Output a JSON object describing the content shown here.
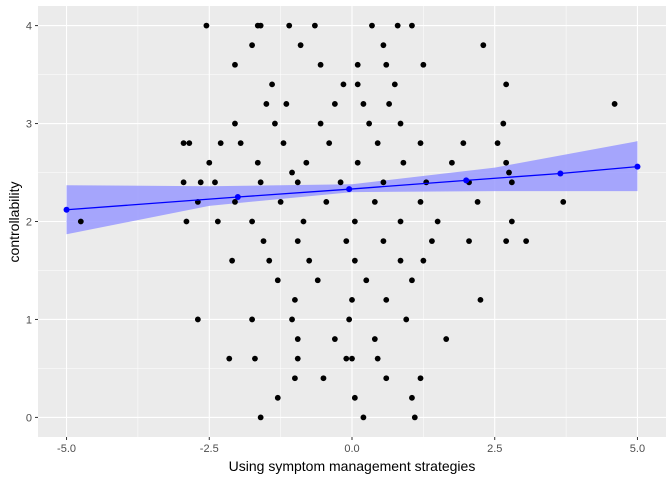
{
  "chart_data": {
    "type": "scatter",
    "xlabel": "Using symptom management strategies",
    "ylabel": "controllability",
    "xlim": [
      -5.5,
      5.5
    ],
    "ylim": [
      -0.2,
      4.2
    ],
    "x_ticks": [
      -5.0,
      -2.5,
      0.0,
      2.5,
      5.0
    ],
    "x_tick_labels": [
      "-5.0",
      "-2.5",
      "0.0",
      "2.5",
      "5.0"
    ],
    "y_ticks": [
      0,
      1,
      2,
      3,
      4
    ],
    "y_tick_labels": [
      "0",
      "1",
      "2",
      "3",
      "4"
    ],
    "grid": true,
    "colors": {
      "panel": "#ebebeb",
      "grid": "#ffffff",
      "points": "#000000",
      "fit": "#0000ff",
      "ribbon": "#9999ff"
    },
    "points": [
      [
        -2.55,
        4.0
      ],
      [
        -1.65,
        4.0
      ],
      [
        -1.6,
        4.0
      ],
      [
        -1.1,
        4.0
      ],
      [
        -0.65,
        4.0
      ],
      [
        0.35,
        4.0
      ],
      [
        0.8,
        4.0
      ],
      [
        1.05,
        4.0
      ],
      [
        -1.75,
        3.8
      ],
      [
        -0.9,
        3.8
      ],
      [
        0.55,
        3.8
      ],
      [
        2.3,
        3.8
      ],
      [
        -2.05,
        3.6
      ],
      [
        -0.55,
        3.6
      ],
      [
        0.1,
        3.6
      ],
      [
        0.6,
        3.6
      ],
      [
        1.25,
        3.6
      ],
      [
        -1.4,
        3.4
      ],
      [
        -0.15,
        3.4
      ],
      [
        0.1,
        3.4
      ],
      [
        0.75,
        3.4
      ],
      [
        2.7,
        3.4
      ],
      [
        -1.5,
        3.2
      ],
      [
        -1.15,
        3.2
      ],
      [
        -0.3,
        3.2
      ],
      [
        0.2,
        3.2
      ],
      [
        0.65,
        3.2
      ],
      [
        4.6,
        3.2
      ],
      [
        -2.05,
        3.0
      ],
      [
        -1.35,
        3.0
      ],
      [
        -0.55,
        3.0
      ],
      [
        0.3,
        3.0
      ],
      [
        0.85,
        3.0
      ],
      [
        2.65,
        3.0
      ],
      [
        -2.95,
        2.8
      ],
      [
        -2.85,
        2.8
      ],
      [
        -2.3,
        2.8
      ],
      [
        -1.95,
        2.8
      ],
      [
        -1.2,
        2.8
      ],
      [
        -0.4,
        2.8
      ],
      [
        0.45,
        2.8
      ],
      [
        1.2,
        2.8
      ],
      [
        1.95,
        2.8
      ],
      [
        2.55,
        2.8
      ],
      [
        -2.5,
        2.6
      ],
      [
        -1.65,
        2.6
      ],
      [
        -0.8,
        2.6
      ],
      [
        0.1,
        2.6
      ],
      [
        0.9,
        2.6
      ],
      [
        1.75,
        2.6
      ],
      [
        2.7,
        2.6
      ],
      [
        -1.05,
        2.5
      ],
      [
        2.75,
        2.5
      ],
      [
        -2.95,
        2.4
      ],
      [
        -2.65,
        2.4
      ],
      [
        -2.4,
        2.4
      ],
      [
        -1.6,
        2.4
      ],
      [
        -0.95,
        2.4
      ],
      [
        -0.2,
        2.4
      ],
      [
        0.55,
        2.4
      ],
      [
        1.3,
        2.4
      ],
      [
        2.05,
        2.4
      ],
      [
        2.8,
        2.4
      ],
      [
        -2.7,
        2.2
      ],
      [
        -2.05,
        2.2
      ],
      [
        -1.25,
        2.2
      ],
      [
        -0.45,
        2.2
      ],
      [
        0.4,
        2.2
      ],
      [
        1.2,
        2.2
      ],
      [
        2.2,
        2.2
      ],
      [
        3.7,
        2.2
      ],
      [
        -2.9,
        2.0
      ],
      [
        -4.75,
        2.0
      ],
      [
        -2.35,
        2.0
      ],
      [
        -1.75,
        2.0
      ],
      [
        -0.85,
        2.0
      ],
      [
        0.05,
        2.0
      ],
      [
        0.85,
        2.0
      ],
      [
        1.5,
        2.0
      ],
      [
        2.8,
        2.0
      ],
      [
        -1.55,
        1.8
      ],
      [
        -0.95,
        1.8
      ],
      [
        -0.1,
        1.8
      ],
      [
        0.55,
        1.8
      ],
      [
        1.4,
        1.8
      ],
      [
        2.05,
        1.8
      ],
      [
        2.7,
        1.8
      ],
      [
        3.05,
        1.8
      ],
      [
        -2.1,
        1.6
      ],
      [
        -1.45,
        1.6
      ],
      [
        -0.75,
        1.6
      ],
      [
        0.05,
        1.6
      ],
      [
        0.85,
        1.6
      ],
      [
        1.25,
        1.6
      ],
      [
        -1.3,
        1.4
      ],
      [
        -0.6,
        1.4
      ],
      [
        0.25,
        1.4
      ],
      [
        1.05,
        1.4
      ],
      [
        -1.0,
        1.2
      ],
      [
        0.0,
        1.2
      ],
      [
        0.6,
        1.2
      ],
      [
        2.25,
        1.2
      ],
      [
        -2.7,
        1.0
      ],
      [
        -1.75,
        1.0
      ],
      [
        -1.05,
        1.0
      ],
      [
        -0.05,
        1.0
      ],
      [
        0.95,
        1.0
      ],
      [
        -0.95,
        0.8
      ],
      [
        -0.3,
        0.8
      ],
      [
        0.4,
        0.8
      ],
      [
        1.65,
        0.8
      ],
      [
        -2.15,
        0.6
      ],
      [
        -1.7,
        0.6
      ],
      [
        -0.95,
        0.6
      ],
      [
        -0.1,
        0.6
      ],
      [
        0.0,
        0.6
      ],
      [
        0.45,
        0.6
      ],
      [
        -1.0,
        0.4
      ],
      [
        -0.5,
        0.4
      ],
      [
        0.6,
        0.4
      ],
      [
        1.2,
        0.4
      ],
      [
        -1.3,
        0.2
      ],
      [
        0.05,
        0.2
      ],
      [
        1.05,
        0.2
      ],
      [
        -1.6,
        0.0
      ],
      [
        0.2,
        0.0
      ],
      [
        1.1,
        0.0
      ]
    ],
    "fit_points": [
      [
        -5.0,
        2.12
      ],
      [
        -2.0,
        2.25
      ],
      [
        -0.05,
        2.33
      ],
      [
        2.0,
        2.42
      ],
      [
        3.65,
        2.49
      ],
      [
        5.0,
        2.56
      ]
    ],
    "ribbon": {
      "x": [
        -5.0,
        -2.5,
        0.0,
        2.5,
        5.0
      ],
      "lower": [
        1.87,
        2.16,
        2.3,
        2.31,
        2.31
      ],
      "upper": [
        2.37,
        2.36,
        2.38,
        2.55,
        2.82
      ]
    }
  }
}
